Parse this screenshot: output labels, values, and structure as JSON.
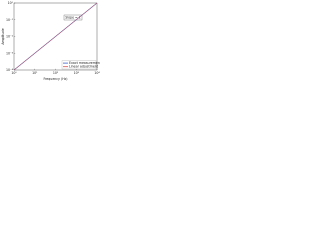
{
  "chart_data": {
    "type": "line",
    "log_x": true,
    "log_y": true,
    "grid": false,
    "x_label": "Frequency (Hz)",
    "y_label": "Amplitude",
    "annotation": "Slope = 1",
    "legend": "lower right",
    "x": [
      1,
      10,
      100,
      1000,
      10000
    ],
    "xlim": [
      1,
      10000
    ],
    "xticks": [
      {
        "value": 1,
        "label": "10⁰"
      },
      {
        "value": 10,
        "label": "10¹"
      },
      {
        "value": 100,
        "label": "10²"
      },
      {
        "value": 1000,
        "label": "10³"
      },
      {
        "value": 10000,
        "label": "10⁴"
      }
    ],
    "ylim": [
      0.0001,
      1
    ],
    "yticks": [
      {
        "value": 0.0001,
        "label": "10⁻⁴"
      },
      {
        "value": 0.001,
        "label": "10⁻³"
      },
      {
        "value": 0.01,
        "label": "10⁻²"
      },
      {
        "value": 0.1,
        "label": "10⁻¹"
      },
      {
        "value": 1,
        "label": "10⁰"
      }
    ],
    "series": [
      {
        "name": "Exact measurement",
        "color": "#3a5fcd",
        "values": [
          0.0001,
          0.001,
          0.01,
          0.1,
          1
        ]
      },
      {
        "name": "Linear adjustment",
        "color": "#d9534f",
        "values": [
          0.0001,
          0.001,
          0.01,
          0.1,
          1
        ]
      }
    ]
  }
}
